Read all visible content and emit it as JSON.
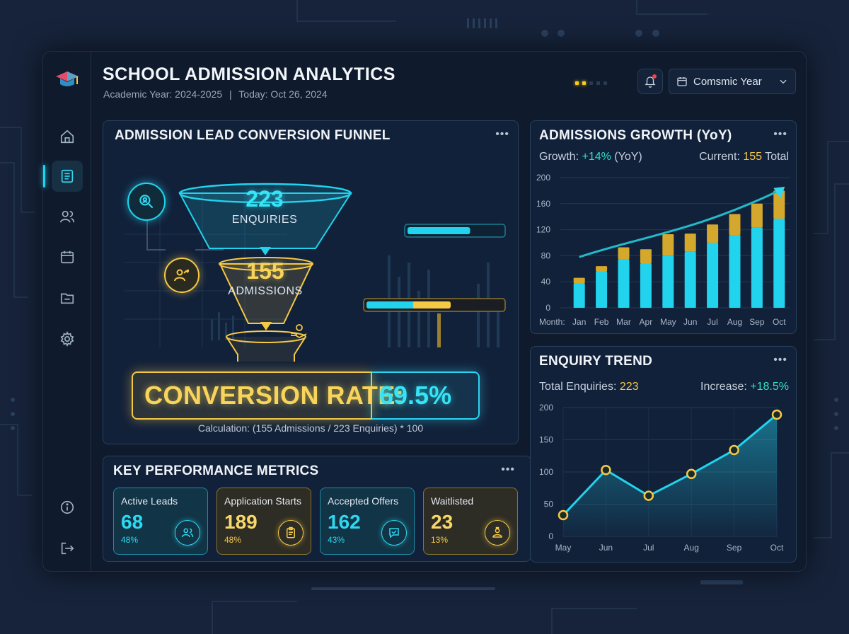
{
  "header": {
    "title": "SCHOOL ADMISSION ANALYTICS",
    "academic_year": "Academic Year: 2024-2025",
    "separator": "|",
    "today": "Today: Oct 26, 2024",
    "year_select": "Comsmic Year",
    "logo_icon": "graduation-cap-icon",
    "bell_icon": "bell-icon",
    "calendar_icon": "calendar-icon",
    "dropdown_icon": "chevron-down-icon"
  },
  "sidebar": {
    "items": [
      {
        "icon": "home-icon",
        "active": false
      },
      {
        "icon": "document-icon",
        "active": true
      },
      {
        "icon": "users-icon",
        "active": false
      },
      {
        "icon": "calendar-icon",
        "active": false
      },
      {
        "icon": "folder-icon",
        "active": false
      },
      {
        "icon": "gear-icon",
        "active": false
      }
    ],
    "bottom": [
      {
        "icon": "info-icon"
      },
      {
        "icon": "logout-icon"
      }
    ]
  },
  "funnel": {
    "title": "ADMISSION LEAD CONVERSION FUNNEL",
    "more": "•••",
    "stage1_value": "223",
    "stage1_label": "ENQUIRIES",
    "stage1_fill": 0.66,
    "stage2_value": "155",
    "stage2_label": "ADMISSIONS",
    "stage2_fill": 0.62,
    "conversion_label": "CONVERSION RATE:",
    "conversion_value": "69.5%",
    "calculation": "Calculation: (155 Admissions / 223 Enquiries) * 100",
    "colors": {
      "cyan": "#22d3ee",
      "gold": "#f6c945"
    }
  },
  "kpis": {
    "title": "KEY PERFORMANCE METRICS",
    "more": "•••",
    "items": [
      {
        "label": "Active Leads",
        "value": "68",
        "pct": "48%",
        "theme": "cyan",
        "icon": "users-icon"
      },
      {
        "label": "Application Starts",
        "value": "189",
        "pct": "48%",
        "theme": "gold",
        "icon": "clipboard-icon"
      },
      {
        "label": "Accepted Offers",
        "value": "162",
        "pct": "43%",
        "theme": "cyan",
        "icon": "chat-check-icon"
      },
      {
        "label": "Waitlisted",
        "value": "23",
        "pct": "13%",
        "theme": "gold",
        "icon": "person-lock-icon"
      }
    ]
  },
  "growth": {
    "title": "ADMISSIONS GROWTH (YoY)",
    "more": "•••",
    "growth_label": "Growth:",
    "growth_value": "+14%",
    "growth_suffix": "(YoY)",
    "current_label": "Current:",
    "current_value": "155",
    "current_suffix": "Total",
    "x_prefix": "Month:"
  },
  "enquiry": {
    "title": "ENQUIRY TREND",
    "more": "•••",
    "total_label": "Total Enquiries:",
    "total_value": "223",
    "increase_label": "Increase:",
    "increase_value": "+18.5%"
  },
  "chart_data": [
    {
      "type": "bar",
      "title": "ADMISSIONS GROWTH (YoY)",
      "categories": [
        "Jan",
        "Feb",
        "Mar",
        "Apr",
        "May",
        "Jun",
        "Jul",
        "Aug",
        "Sep",
        "Oct"
      ],
      "series": [
        {
          "values": [
            38,
            56,
            75,
            68,
            80,
            86,
            100,
            112,
            123,
            137
          ],
          "color": "#22d3ee"
        },
        {
          "values": [
            8,
            8,
            18,
            22,
            33,
            28,
            28,
            32,
            37,
            43
          ],
          "color": "#d4a82c"
        }
      ],
      "stacked": true,
      "ylim": [
        0,
        200
      ],
      "yticks": [
        0,
        40,
        80,
        120,
        160,
        200
      ],
      "trend_line": true,
      "grid": true
    },
    {
      "type": "area",
      "title": "ENQUIRY TREND",
      "categories": [
        "May",
        "Jun",
        "Jul",
        "Aug",
        "Sep",
        "Oct"
      ],
      "values": [
        33,
        103,
        63,
        97,
        134,
        189
      ],
      "ylim": [
        0,
        200
      ],
      "yticks": [
        0,
        50,
        100,
        150,
        200
      ],
      "grid": true,
      "color": "#22d3ee"
    }
  ]
}
